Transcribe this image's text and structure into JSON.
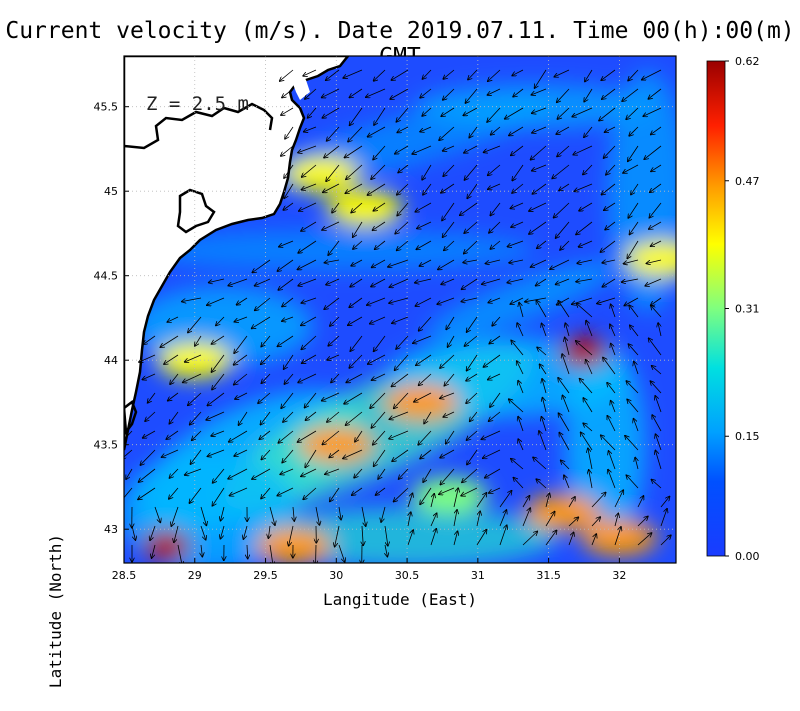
{
  "figure": {
    "title": "Current velocity (m/s). Date 2019.07.11. Time 00(h):00(m) GMT",
    "depth_label": "Z = 2.5 m",
    "xlabel": "Langitude (East)",
    "ylabel": "Latitude (North)"
  },
  "chart_data": {
    "type": "heatmap",
    "title": "Current velocity (m/s). Date 2019.07.11. Time 00(h):00(m) GMT",
    "xlabel": "Langitude (East)",
    "ylabel": "Latitude (North)",
    "xlim": [
      28.5,
      32.4
    ],
    "ylim": [
      42.8,
      45.8
    ],
    "x_ticks": [
      "28.5",
      "29",
      "29.5",
      "30",
      "30.5",
      "31",
      "31.5",
      "32"
    ],
    "y_ticks": [
      "43",
      "43.5",
      "44",
      "44.5",
      "45",
      "45.5"
    ],
    "grid": true,
    "colorbar": {
      "ticks": [
        "0.00",
        "0.15",
        "0.31",
        "0.47",
        "0.62"
      ],
      "range": [
        0.0,
        0.62
      ],
      "colors": [
        "#1a3cff",
        "#00a0ff",
        "#00e0e0",
        "#7fff7f",
        "#ffff00",
        "#ff9900",
        "#ff2000",
        "#9a0000"
      ]
    },
    "hotspots": [
      {
        "lon": 28.8,
        "lat": 42.9,
        "value": 0.62
      },
      {
        "lon": 31.75,
        "lat": 44.05,
        "value": 0.6
      },
      {
        "lon": 30.6,
        "lat": 43.75,
        "value": 0.45
      },
      {
        "lon": 30.0,
        "lat": 43.5,
        "value": 0.42
      },
      {
        "lon": 32.0,
        "lat": 42.95,
        "value": 0.45
      },
      {
        "lon": 31.6,
        "lat": 43.1,
        "value": 0.44
      },
      {
        "lon": 29.0,
        "lat": 44.0,
        "value": 0.38
      },
      {
        "lon": 29.9,
        "lat": 45.1,
        "value": 0.35
      },
      {
        "lon": 30.2,
        "lat": 44.9,
        "value": 0.33
      },
      {
        "lon": 29.7,
        "lat": 42.9,
        "value": 0.4
      },
      {
        "lon": 30.8,
        "lat": 43.2,
        "value": 0.3
      },
      {
        "lon": 32.3,
        "lat": 44.6,
        "value": 0.35
      }
    ]
  }
}
